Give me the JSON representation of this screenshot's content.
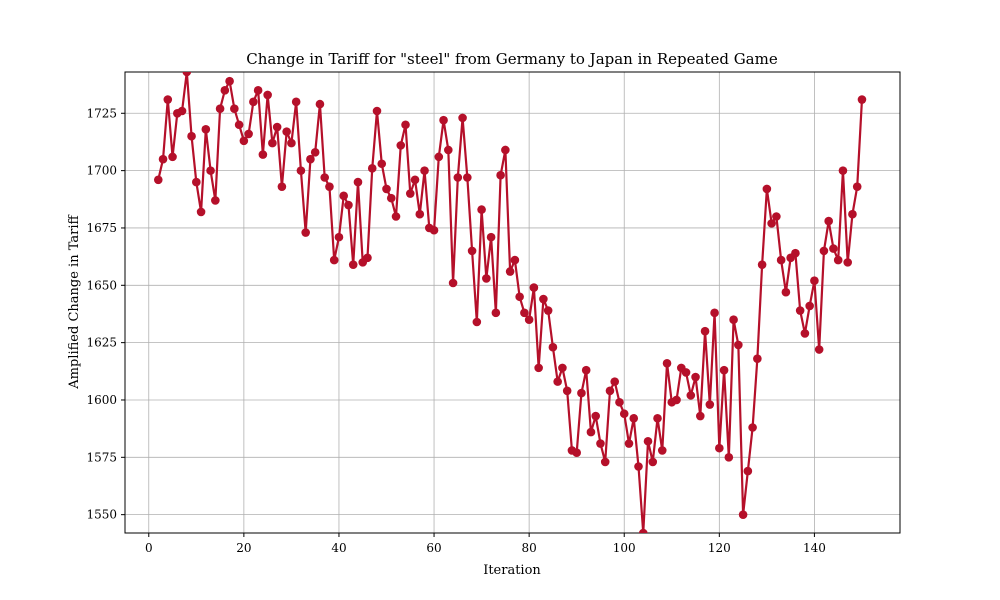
{
  "chart_data": {
    "type": "line",
    "title": "Change in Tariff for \"steel\" from Germany to Japan in Repeated Game",
    "xlabel": "Iteration",
    "ylabel": "Amplified Change in Tariff",
    "xlim": [
      -5,
      158
    ],
    "ylim": [
      1542,
      1743
    ],
    "xticks": [
      0,
      20,
      40,
      60,
      80,
      100,
      120,
      140
    ],
    "yticks": [
      1550,
      1575,
      1600,
      1625,
      1650,
      1675,
      1700,
      1725
    ],
    "grid": true,
    "color": "#b5102a",
    "series": [
      {
        "x": [
          2,
          3,
          4,
          5,
          6,
          7,
          8,
          9,
          10,
          11,
          12,
          13,
          14,
          15,
          16,
          17,
          18,
          19,
          20,
          21,
          22,
          23,
          24,
          25,
          26,
          27,
          28,
          29,
          30,
          31,
          32,
          33,
          34,
          35,
          36,
          37,
          38,
          39,
          40,
          41,
          42,
          43,
          44,
          45,
          46,
          47,
          48,
          49,
          50,
          51,
          52,
          53,
          54,
          55,
          56,
          57,
          58,
          59,
          60,
          61,
          62,
          63,
          64,
          65,
          66,
          67,
          68,
          69,
          70,
          71,
          72,
          73,
          74,
          75,
          76,
          77,
          78,
          79,
          80,
          81,
          82,
          83,
          84,
          85,
          86,
          87,
          88,
          89,
          90,
          91,
          92,
          93,
          94,
          95,
          96,
          97,
          98,
          99,
          100,
          101,
          102,
          103,
          104,
          105,
          106,
          107,
          108,
          109,
          110,
          111,
          112,
          113,
          114,
          115,
          116,
          117,
          118,
          119,
          120,
          121,
          122,
          123,
          124,
          125,
          126,
          127,
          128,
          129,
          130,
          131,
          132,
          133,
          134,
          135,
          136,
          137,
          138,
          139,
          140,
          141,
          142,
          143,
          144,
          145,
          146,
          147,
          148,
          149,
          150
        ],
        "y": [
          1696,
          1705,
          1731,
          1706,
          1725,
          1726,
          1743,
          1715,
          1695,
          1682,
          1718,
          1700,
          1687,
          1727,
          1735,
          1739,
          1727,
          1720,
          1713,
          1716,
          1730,
          1735,
          1707,
          1733,
          1712,
          1719,
          1693,
          1717,
          1712,
          1730,
          1700,
          1673,
          1705,
          1708,
          1729,
          1697,
          1693,
          1661,
          1671,
          1689,
          1685,
          1659,
          1695,
          1660,
          1662,
          1701,
          1726,
          1703,
          1692,
          1688,
          1680,
          1711,
          1720,
          1690,
          1696,
          1681,
          1700,
          1675,
          1674,
          1706,
          1722,
          1709,
          1651,
          1697,
          1723,
          1697,
          1665,
          1634,
          1683,
          1653,
          1671,
          1638,
          1698,
          1709,
          1656,
          1661,
          1645,
          1638,
          1635,
          1649,
          1614,
          1644,
          1639,
          1623,
          1608,
          1614,
          1604,
          1578,
          1577,
          1603,
          1613,
          1586,
          1593,
          1581,
          1573,
          1604,
          1608,
          1599,
          1594,
          1581,
          1592,
          1571,
          1542,
          1582,
          1573,
          1592,
          1578,
          1616,
          1599,
          1600,
          1614,
          1612,
          1602,
          1610,
          1593,
          1630,
          1598,
          1638,
          1579,
          1613,
          1575,
          1635,
          1624,
          1550,
          1569,
          1588,
          1618,
          1659,
          1692,
          1677,
          1680,
          1661,
          1647,
          1662,
          1664,
          1639,
          1629,
          1641,
          1652,
          1622,
          1665,
          1678,
          1666,
          1661,
          1700,
          1660,
          1681,
          1693,
          1731
        ]
      }
    ]
  }
}
